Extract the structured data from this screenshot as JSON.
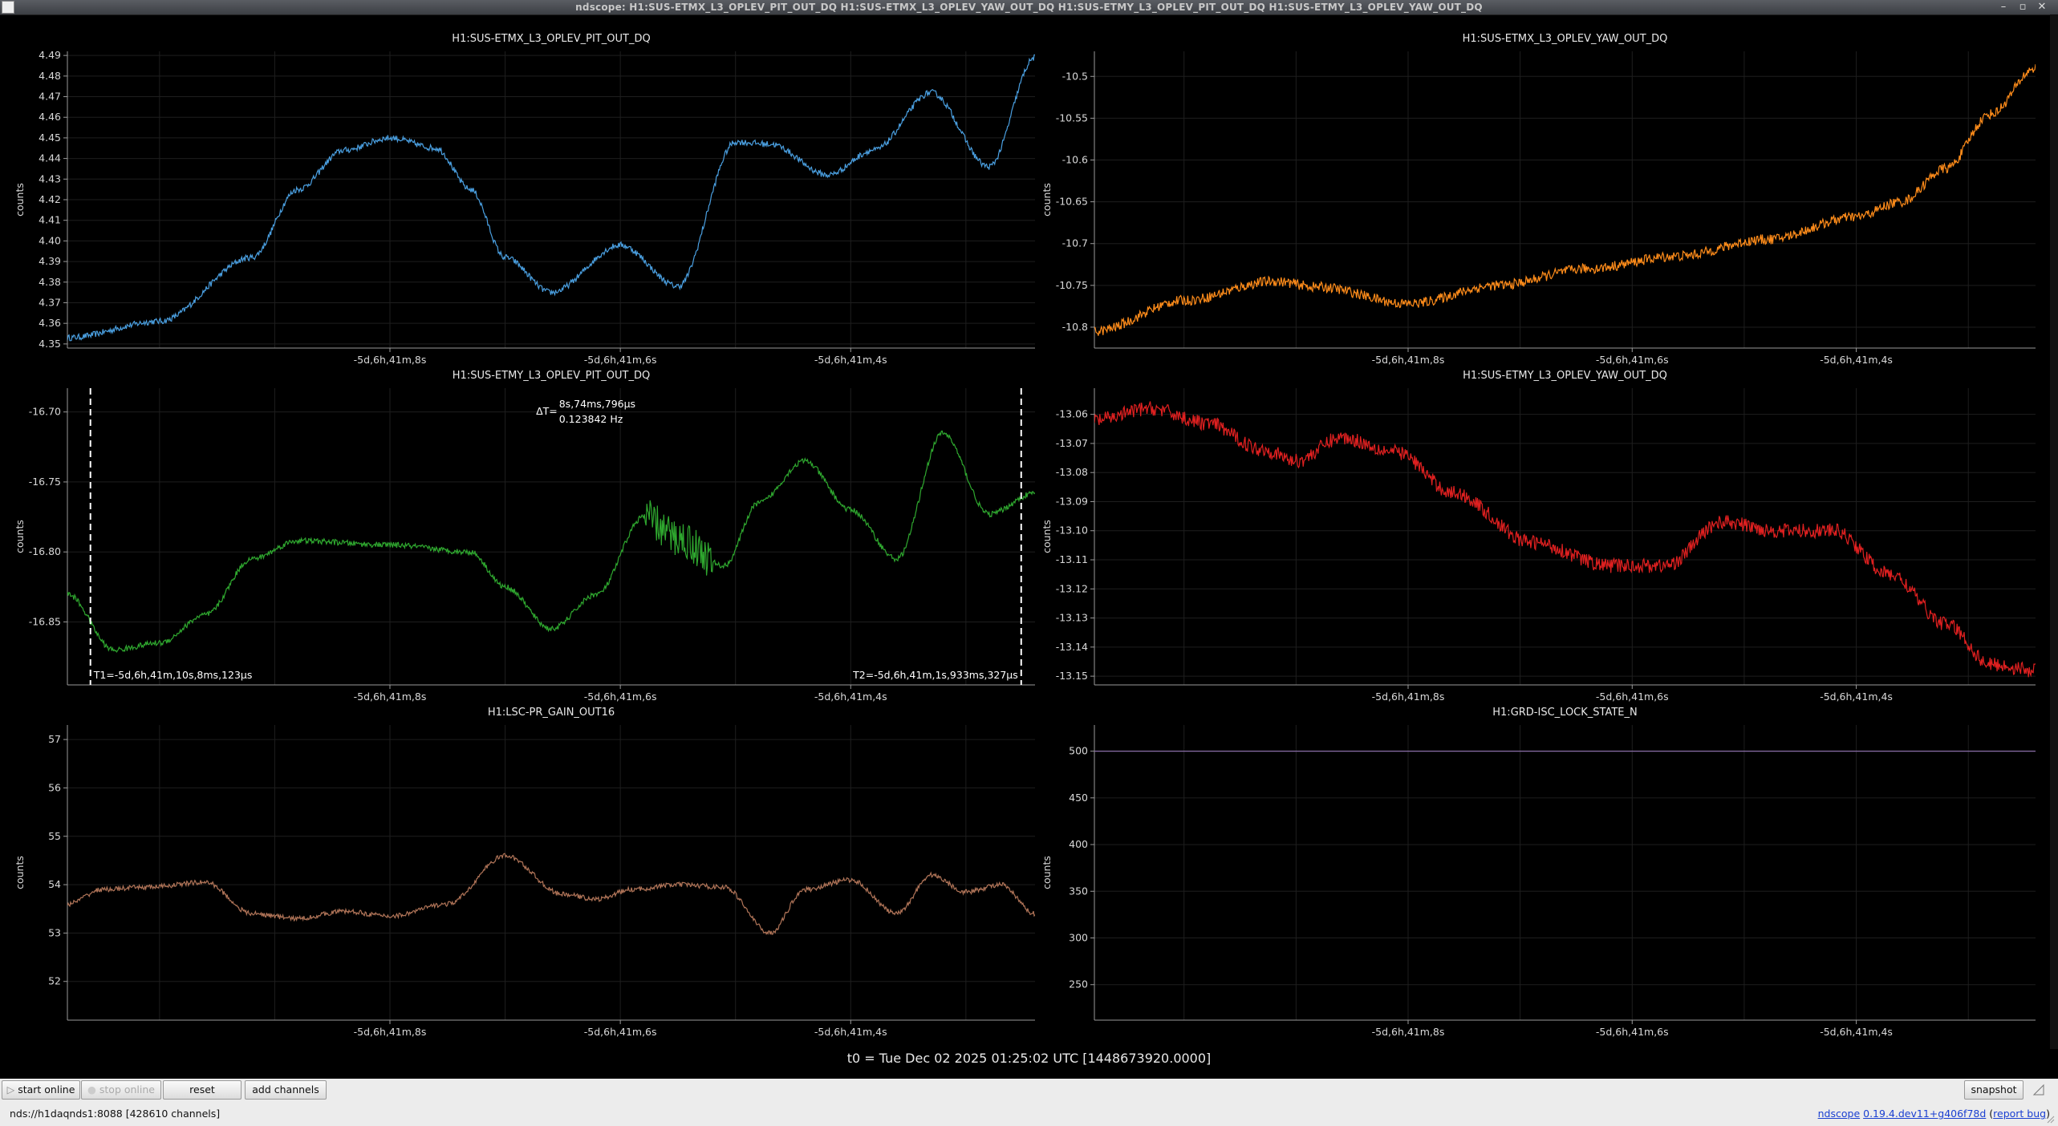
{
  "window": {
    "title": "ndscope: H1:SUS-ETMX_L3_OPLEV_PIT_OUT_DQ H1:SUS-ETMX_L3_OPLEV_YAW_OUT_DQ H1:SUS-ETMY_L3_OPLEV_PIT_OUT_DQ H1:SUS-ETMY_L3_OPLEV_YAW_OUT_DQ",
    "controls": [
      "–",
      "▫",
      "✕"
    ]
  },
  "chart_data": [
    {
      "type": "line",
      "title": "H1:SUS-ETMX_L3_OPLEV_PIT_OUT_DQ",
      "ylabel": "counts",
      "color": "#4a9fe0",
      "xlim": [
        -10.8,
        -2.4
      ],
      "ylim": [
        4.348,
        4.492
      ],
      "xticks": [
        -8,
        -6,
        -4
      ],
      "xticklabels": [
        "-5d,6h,41m,8s",
        "-5d,6h,41m,6s",
        "-5d,6h,41m,4s"
      ],
      "yticks": [
        4.35,
        4.36,
        4.37,
        4.38,
        4.39,
        4.4,
        4.41,
        4.42,
        4.43,
        4.44,
        4.45,
        4.46,
        4.47,
        4.48,
        4.49
      ],
      "yticklabels": [
        "4.35",
        "4.36",
        "4.37",
        "4.38",
        "4.39",
        "4.40",
        "4.41",
        "4.42",
        "4.43",
        "4.44",
        "4.45",
        "4.46",
        "4.47",
        "4.48",
        "4.49"
      ],
      "noise": 0.0015,
      "x": [
        -10.8,
        -10.0,
        -9.2,
        -8.8,
        -8.4,
        -8.0,
        -7.6,
        -7.3,
        -7.0,
        -6.6,
        -6.0,
        -5.5,
        -5.0,
        -4.7,
        -4.2,
        -3.8,
        -3.3,
        -2.8,
        -2.4
      ],
      "y": [
        4.353,
        4.361,
        4.392,
        4.425,
        4.444,
        4.45,
        4.445,
        4.425,
        4.392,
        4.375,
        4.398,
        4.378,
        4.448,
        4.447,
        4.432,
        4.444,
        4.472,
        4.436,
        4.489
      ]
    },
    {
      "type": "line",
      "title": "H1:SUS-ETMX_L3_OPLEV_YAW_OUT_DQ",
      "ylabel": "counts",
      "color": "#ff8c1a",
      "xlim": [
        -10.8,
        -2.4
      ],
      "ylim": [
        -10.825,
        -10.47
      ],
      "xticks": [
        -8,
        -6,
        -4
      ],
      "xticklabels": [
        "-5d,6h,41m,8s",
        "-5d,6h,41m,6s",
        "-5d,6h,41m,4s"
      ],
      "yticks": [
        -10.5,
        -10.55,
        -10.6,
        -10.65,
        -10.7,
        -10.75,
        -10.8
      ],
      "yticklabels": [
        "-10.5",
        "-10.55",
        "-10.6",
        "-10.65",
        "-10.7",
        "-10.75",
        "-10.8"
      ],
      "noise": 0.006,
      "x": [
        -10.8,
        -10.0,
        -9.2,
        -8.8,
        -8.0,
        -7.2,
        -6.4,
        -5.6,
        -4.8,
        -4.0,
        -3.6,
        -3.2,
        -2.8,
        -2.4
      ],
      "y": [
        -10.805,
        -10.768,
        -10.745,
        -10.752,
        -10.772,
        -10.75,
        -10.73,
        -10.715,
        -10.695,
        -10.668,
        -10.65,
        -10.61,
        -10.545,
        -10.49
      ]
    },
    {
      "type": "line",
      "title": "H1:SUS-ETMY_L3_OPLEV_PIT_OUT_DQ",
      "ylabel": "counts",
      "color": "#2fa82f",
      "xlim": [
        -10.8,
        -2.4
      ],
      "ylim": [
        -16.895,
        -16.683
      ],
      "xticks": [
        -8,
        -6,
        -4
      ],
      "xticklabels": [
        "-5d,6h,41m,8s",
        "-5d,6h,41m,6s",
        "-5d,6h,41m,4s"
      ],
      "yticks": [
        -16.7,
        -16.75,
        -16.8,
        -16.85
      ],
      "yticklabels": [
        "-16.70",
        "-16.75",
        "-16.80",
        "-16.85"
      ],
      "noise": 0.002,
      "x": [
        -10.8,
        -10.4,
        -10.0,
        -9.6,
        -9.2,
        -8.8,
        -8.0,
        -7.3,
        -7.0,
        -6.6,
        -6.2,
        -5.8,
        -5.5,
        -5.1,
        -4.8,
        -4.4,
        -4.0,
        -3.6,
        -3.2,
        -2.8,
        -2.4
      ],
      "y": [
        -16.83,
        -16.87,
        -16.865,
        -16.845,
        -16.805,
        -16.792,
        -16.795,
        -16.8,
        -16.825,
        -16.855,
        -16.83,
        -16.775,
        -16.79,
        -16.81,
        -16.765,
        -16.735,
        -16.77,
        -16.805,
        -16.715,
        -16.773,
        -16.758
      ],
      "glitch": {
        "x": -5.5,
        "width": 0.3
      },
      "cursors": {
        "t1": {
          "x": -10.6,
          "label": "T1=-5d,6h,41m,10s,8ms,123µs"
        },
        "t2": {
          "x": -2.52,
          "label": "T2=-5d,6h,41m,1s,933ms,327µs"
        },
        "delta_label": "ΔT=",
        "delta_time": "8s,74ms,796µs",
        "delta_freq": "0.123842 Hz"
      }
    },
    {
      "type": "line",
      "title": "H1:SUS-ETMY_L3_OPLEV_YAW_OUT_DQ",
      "ylabel": "counts",
      "color": "#e02020",
      "xlim": [
        -10.8,
        -2.4
      ],
      "ylim": [
        -13.153,
        -13.051
      ],
      "xticks": [
        -8,
        -6,
        -4
      ],
      "xticklabels": [
        "-5d,6h,41m,8s",
        "-5d,6h,41m,6s",
        "-5d,6h,41m,4s"
      ],
      "yticks": [
        -13.06,
        -13.07,
        -13.08,
        -13.09,
        -13.1,
        -13.11,
        -13.12,
        -13.13,
        -13.14,
        -13.15
      ],
      "yticklabels": [
        "-13.06",
        "-13.07",
        "-13.08",
        "-13.09",
        "-13.10",
        "-13.11",
        "-13.12",
        "-13.13",
        "-13.14",
        "-13.15"
      ],
      "noise": 0.0025,
      "x": [
        -10.8,
        -10.3,
        -9.8,
        -9.3,
        -9.0,
        -8.6,
        -8.1,
        -7.6,
        -6.9,
        -6.2,
        -5.7,
        -5.2,
        -4.7,
        -4.2,
        -3.7,
        -3.2,
        -2.8,
        -2.4
      ],
      "y": [
        -13.062,
        -13.058,
        -13.063,
        -13.072,
        -13.076,
        -13.068,
        -13.073,
        -13.087,
        -13.104,
        -13.112,
        -13.112,
        -13.097,
        -13.1,
        -13.1,
        -13.115,
        -13.132,
        -13.146,
        -13.148
      ]
    },
    {
      "type": "line",
      "title": "H1:LSC-PR_GAIN_OUT16",
      "ylabel": "counts",
      "color": "#b07458",
      "xlim": [
        -10.8,
        -2.4
      ],
      "ylim": [
        51.2,
        57.3
      ],
      "xticks": [
        -8,
        -6,
        -4
      ],
      "xticklabels": [
        "-5d,6h,41m,8s",
        "-5d,6h,41m,6s",
        "-5d,6h,41m,4s"
      ],
      "yticks": [
        52,
        53,
        54,
        55,
        56,
        57
      ],
      "yticklabels": [
        "52",
        "53",
        "54",
        "55",
        "56",
        "57"
      ],
      "noise": 0.05,
      "x": [
        -10.8,
        -10.5,
        -10.1,
        -9.6,
        -9.2,
        -8.8,
        -8.4,
        -8.0,
        -7.5,
        -7.0,
        -6.5,
        -6.2,
        -5.9,
        -5.5,
        -5.1,
        -4.7,
        -4.4,
        -4.0,
        -3.6,
        -3.3,
        -3.0,
        -2.7,
        -2.4
      ],
      "y": [
        53.6,
        53.9,
        53.95,
        54.05,
        53.4,
        53.3,
        53.45,
        53.35,
        53.6,
        54.6,
        53.8,
        53.7,
        53.9,
        54.0,
        53.95,
        53.0,
        53.9,
        54.1,
        53.4,
        54.2,
        53.85,
        54.0,
        53.4
      ]
    },
    {
      "type": "line",
      "title": "H1:GRD-ISC_LOCK_STATE_N",
      "ylabel": "counts",
      "color": "#8a6fa8",
      "xlim": [
        -10.8,
        -2.4
      ],
      "ylim": [
        212,
        528
      ],
      "xticks": [
        -8,
        -6,
        -4
      ],
      "xticklabels": [
        "-5d,6h,41m,8s",
        "-5d,6h,41m,6s",
        "-5d,6h,41m,4s"
      ],
      "yticks": [
        500,
        450,
        400,
        350,
        300,
        250
      ],
      "yticklabels": [
        "500",
        "450",
        "400",
        "350",
        "300",
        "250"
      ],
      "noise": 0,
      "x": [
        -10.8,
        -2.4
      ],
      "y": [
        500,
        500
      ]
    }
  ],
  "t0_label": "t0 = Tue Dec 02 2025 01:25:02 UTC [1448673920.0000]",
  "controls": {
    "start_online": "start online",
    "stop_online": "stop online",
    "reset": "reset",
    "add_channels": "add channels",
    "snapshot": "snapshot"
  },
  "status": {
    "server": "nds://h1daqnds1:8088  [428610 channels]",
    "app_name": "ndscope",
    "version": "0.19.4.dev11+g406f78d",
    "report_bug": "report bug"
  }
}
